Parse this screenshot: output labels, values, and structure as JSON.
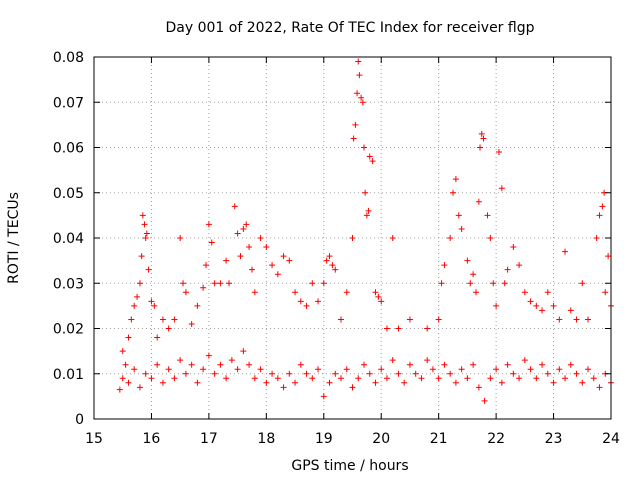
{
  "chart_data": {
    "type": "scatter",
    "title": "Day 001 of 2022, Rate Of TEC Index for receiver flgp",
    "xlabel": "GPS time / hours",
    "ylabel": "ROTI / TECUs",
    "xlim": [
      15,
      24
    ],
    "ylim": [
      0,
      0.08
    ],
    "xticks": [
      15,
      16,
      17,
      18,
      19,
      20,
      21,
      22,
      23,
      24
    ],
    "xtick_labels": [
      "15",
      "16",
      "17",
      "18",
      "19",
      "20",
      "21",
      "22",
      "23",
      "24"
    ],
    "yticks": [
      0,
      0.01,
      0.02,
      0.03,
      0.04,
      0.05,
      0.06,
      0.07,
      0.08
    ],
    "ytick_labels": [
      "0",
      "0.01",
      "0.02",
      "0.03",
      "0.04",
      "0.05",
      "0.06",
      "0.07",
      "0.08"
    ],
    "grid": true,
    "marker": "+",
    "color": "#ff0000",
    "series": [
      {
        "name": "ROTI",
        "points": [
          [
            15.45,
            0.0065
          ],
          [
            15.5,
            0.015
          ],
          [
            15.55,
            0.012
          ],
          [
            15.6,
            0.018
          ],
          [
            15.65,
            0.022
          ],
          [
            15.7,
            0.025
          ],
          [
            15.75,
            0.027
          ],
          [
            15.8,
            0.03
          ],
          [
            15.83,
            0.036
          ],
          [
            15.85,
            0.045
          ],
          [
            15.88,
            0.043
          ],
          [
            15.9,
            0.04
          ],
          [
            15.92,
            0.041
          ],
          [
            15.95,
            0.033
          ],
          [
            16.0,
            0.026
          ],
          [
            16.05,
            0.025
          ],
          [
            16.1,
            0.018
          ],
          [
            16.2,
            0.022
          ],
          [
            16.3,
            0.02
          ],
          [
            16.4,
            0.022
          ],
          [
            16.5,
            0.04
          ],
          [
            16.55,
            0.03
          ],
          [
            16.6,
            0.028
          ],
          [
            16.7,
            0.021
          ],
          [
            16.8,
            0.025
          ],
          [
            16.9,
            0.029
          ],
          [
            16.95,
            0.034
          ],
          [
            17.0,
            0.043
          ],
          [
            17.05,
            0.039
          ],
          [
            17.1,
            0.03
          ],
          [
            17.2,
            0.03
          ],
          [
            17.3,
            0.035
          ],
          [
            17.35,
            0.03
          ],
          [
            17.45,
            0.047
          ],
          [
            17.5,
            0.041
          ],
          [
            17.55,
            0.036
          ],
          [
            17.6,
            0.042
          ],
          [
            17.65,
            0.043
          ],
          [
            17.7,
            0.038
          ],
          [
            17.75,
            0.033
          ],
          [
            17.8,
            0.028
          ],
          [
            17.9,
            0.04
          ],
          [
            18.0,
            0.038
          ],
          [
            18.1,
            0.034
          ],
          [
            18.2,
            0.032
          ],
          [
            18.3,
            0.036
          ],
          [
            18.4,
            0.035
          ],
          [
            18.5,
            0.028
          ],
          [
            18.6,
            0.026
          ],
          [
            18.7,
            0.025
          ],
          [
            18.8,
            0.03
          ],
          [
            18.9,
            0.026
          ],
          [
            19.0,
            0.03
          ],
          [
            19.05,
            0.035
          ],
          [
            19.1,
            0.036
          ],
          [
            19.15,
            0.034
          ],
          [
            19.2,
            0.033
          ],
          [
            19.3,
            0.022
          ],
          [
            19.4,
            0.028
          ],
          [
            19.5,
            0.04
          ],
          [
            19.52,
            0.062
          ],
          [
            19.55,
            0.065
          ],
          [
            19.58,
            0.072
          ],
          [
            19.6,
            0.079
          ],
          [
            19.62,
            0.076
          ],
          [
            19.65,
            0.071
          ],
          [
            19.68,
            0.07
          ],
          [
            19.7,
            0.06
          ],
          [
            19.72,
            0.05
          ],
          [
            19.75,
            0.045
          ],
          [
            19.78,
            0.046
          ],
          [
            19.8,
            0.058
          ],
          [
            19.85,
            0.057
          ],
          [
            19.9,
            0.028
          ],
          [
            19.95,
            0.027
          ],
          [
            20.0,
            0.026
          ],
          [
            20.1,
            0.02
          ],
          [
            20.2,
            0.04
          ],
          [
            20.3,
            0.02
          ],
          [
            20.5,
            0.022
          ],
          [
            20.8,
            0.02
          ],
          [
            21.0,
            0.022
          ],
          [
            21.05,
            0.03
          ],
          [
            21.1,
            0.034
          ],
          [
            21.2,
            0.04
          ],
          [
            21.25,
            0.05
          ],
          [
            21.3,
            0.053
          ],
          [
            21.35,
            0.045
          ],
          [
            21.4,
            0.042
          ],
          [
            21.5,
            0.035
          ],
          [
            21.55,
            0.03
          ],
          [
            21.6,
            0.032
          ],
          [
            21.65,
            0.028
          ],
          [
            21.7,
            0.048
          ],
          [
            21.72,
            0.06
          ],
          [
            21.75,
            0.063
          ],
          [
            21.78,
            0.062
          ],
          [
            21.85,
            0.045
          ],
          [
            21.9,
            0.04
          ],
          [
            21.95,
            0.03
          ],
          [
            22.0,
            0.025
          ],
          [
            22.05,
            0.059
          ],
          [
            22.1,
            0.051
          ],
          [
            22.15,
            0.03
          ],
          [
            22.2,
            0.033
          ],
          [
            22.3,
            0.038
          ],
          [
            22.4,
            0.034
          ],
          [
            22.5,
            0.028
          ],
          [
            22.6,
            0.026
          ],
          [
            22.7,
            0.025
          ],
          [
            22.8,
            0.024
          ],
          [
            22.9,
            0.028
          ],
          [
            23.0,
            0.025
          ],
          [
            23.1,
            0.022
          ],
          [
            23.2,
            0.037
          ],
          [
            23.3,
            0.024
          ],
          [
            23.4,
            0.022
          ],
          [
            23.5,
            0.03
          ],
          [
            23.6,
            0.022
          ],
          [
            23.75,
            0.04
          ],
          [
            23.8,
            0.045
          ],
          [
            23.85,
            0.047
          ],
          [
            23.88,
            0.05
          ],
          [
            23.9,
            0.028
          ],
          [
            23.95,
            0.036
          ],
          [
            24.0,
            0.025
          ],
          [
            15.5,
            0.009
          ],
          [
            15.6,
            0.008
          ],
          [
            15.7,
            0.011
          ],
          [
            15.8,
            0.007
          ],
          [
            15.9,
            0.01
          ],
          [
            16.0,
            0.009
          ],
          [
            16.1,
            0.012
          ],
          [
            16.2,
            0.008
          ],
          [
            16.3,
            0.011
          ],
          [
            16.4,
            0.009
          ],
          [
            16.5,
            0.013
          ],
          [
            16.6,
            0.01
          ],
          [
            16.7,
            0.012
          ],
          [
            16.8,
            0.008
          ],
          [
            16.9,
            0.011
          ],
          [
            17.0,
            0.014
          ],
          [
            17.1,
            0.01
          ],
          [
            17.2,
            0.012
          ],
          [
            17.3,
            0.009
          ],
          [
            17.4,
            0.013
          ],
          [
            17.5,
            0.011
          ],
          [
            17.6,
            0.015
          ],
          [
            17.7,
            0.012
          ],
          [
            17.8,
            0.009
          ],
          [
            17.9,
            0.011
          ],
          [
            18.0,
            0.008
          ],
          [
            18.1,
            0.01
          ],
          [
            18.2,
            0.009
          ],
          [
            18.3,
            0.007
          ],
          [
            18.4,
            0.01
          ],
          [
            18.5,
            0.008
          ],
          [
            18.6,
            0.012
          ],
          [
            18.7,
            0.01
          ],
          [
            18.8,
            0.009
          ],
          [
            18.9,
            0.011
          ],
          [
            19.0,
            0.005
          ],
          [
            19.1,
            0.008
          ],
          [
            19.2,
            0.01
          ],
          [
            19.3,
            0.009
          ],
          [
            19.4,
            0.011
          ],
          [
            19.5,
            0.007
          ],
          [
            19.6,
            0.009
          ],
          [
            19.7,
            0.012
          ],
          [
            19.8,
            0.01
          ],
          [
            19.9,
            0.008
          ],
          [
            20.0,
            0.011
          ],
          [
            20.1,
            0.009
          ],
          [
            20.2,
            0.013
          ],
          [
            20.3,
            0.01
          ],
          [
            20.4,
            0.008
          ],
          [
            20.5,
            0.012
          ],
          [
            20.6,
            0.01
          ],
          [
            20.7,
            0.009
          ],
          [
            20.8,
            0.013
          ],
          [
            20.9,
            0.011
          ],
          [
            21.0,
            0.009
          ],
          [
            21.1,
            0.012
          ],
          [
            21.2,
            0.01
          ],
          [
            21.3,
            0.008
          ],
          [
            21.4,
            0.011
          ],
          [
            21.5,
            0.009
          ],
          [
            21.6,
            0.012
          ],
          [
            21.7,
            0.007
          ],
          [
            21.8,
            0.004
          ],
          [
            21.9,
            0.009
          ],
          [
            22.0,
            0.011
          ],
          [
            22.1,
            0.008
          ],
          [
            22.2,
            0.012
          ],
          [
            22.3,
            0.01
          ],
          [
            22.4,
            0.009
          ],
          [
            22.5,
            0.013
          ],
          [
            22.6,
            0.011
          ],
          [
            22.7,
            0.009
          ],
          [
            22.8,
            0.012
          ],
          [
            22.9,
            0.01
          ],
          [
            23.0,
            0.008
          ],
          [
            23.1,
            0.011
          ],
          [
            23.2,
            0.009
          ],
          [
            23.3,
            0.012
          ],
          [
            23.4,
            0.01
          ],
          [
            23.5,
            0.008
          ],
          [
            23.6,
            0.011
          ],
          [
            23.7,
            0.009
          ],
          [
            23.8,
            0.007
          ],
          [
            23.9,
            0.01
          ],
          [
            24.0,
            0.008
          ]
        ]
      }
    ]
  }
}
